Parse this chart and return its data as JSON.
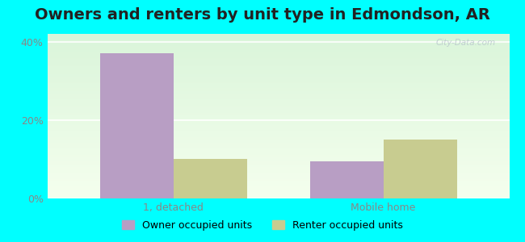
{
  "title": "Owners and renters by unit type in Edmondson, AR",
  "categories": [
    "1, detached",
    "Mobile home"
  ],
  "owner_values": [
    37.0,
    9.5
  ],
  "renter_values": [
    10.0,
    15.0
  ],
  "owner_color": "#b89ec4",
  "renter_color": "#c8cc90",
  "ylim": [
    0,
    42
  ],
  "yticks": [
    0,
    20,
    40
  ],
  "yticklabels": [
    "0%",
    "20%",
    "40%"
  ],
  "bar_width": 0.35,
  "bg_color_top": "#daf5da",
  "bg_color_bottom": "#f5ffee",
  "outer_bg": "#00ffff",
  "title_fontsize": 14,
  "legend_labels": [
    "Owner occupied units",
    "Renter occupied units"
  ],
  "watermark": "City-Data.com"
}
